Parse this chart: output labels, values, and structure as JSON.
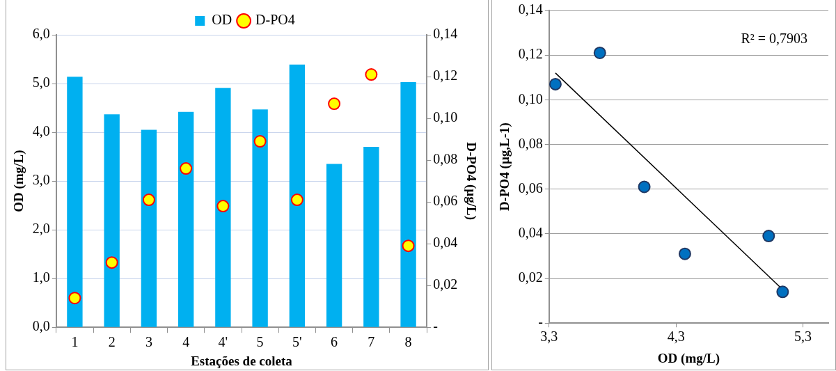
{
  "chart_data": [
    {
      "type": "bar",
      "categories": [
        "1",
        "2",
        "3",
        "4",
        "4'",
        "5",
        "5'",
        "6",
        "7",
        "8"
      ],
      "series": [
        {
          "name": "OD",
          "color": "#00b0f0",
          "values": [
            5.14,
            4.37,
            4.05,
            4.42,
            4.91,
            4.47,
            5.39,
            3.35,
            3.7,
            5.03
          ]
        },
        {
          "name": "D-PO4",
          "type": "scatter",
          "axis": "y2",
          "color": "#ffff00",
          "values": [
            0.014,
            0.031,
            0.061,
            0.076,
            0.058,
            0.089,
            0.061,
            0.107,
            0.121,
            0.039
          ]
        }
      ],
      "xlabel": "Estações de coleta",
      "ylabel": "OD (mg/L)",
      "y2label": "D-PO4 (µg/L)",
      "ylim": [
        0,
        6
      ],
      "yticks": [
        {
          "value": 0,
          "label": "0,0"
        },
        {
          "value": 1,
          "label": "1,0"
        },
        {
          "value": 2,
          "label": "2,0"
        },
        {
          "value": 3,
          "label": "3,0"
        },
        {
          "value": 4,
          "label": "4,0"
        },
        {
          "value": 5,
          "label": "5,0"
        },
        {
          "value": 6,
          "label": "6,0"
        }
      ],
      "y2lim": [
        0,
        0.14
      ],
      "y2ticks": [
        {
          "value": 0,
          "label": "-"
        },
        {
          "value": 0.02,
          "label": "0,02"
        },
        {
          "value": 0.04,
          "label": "0,04"
        },
        {
          "value": 0.06,
          "label": "0,06"
        },
        {
          "value": 0.08,
          "label": "0,08"
        },
        {
          "value": 0.1,
          "label": "0,10"
        },
        {
          "value": 0.12,
          "label": "0,12"
        },
        {
          "value": 0.14,
          "label": "0,14"
        }
      ],
      "grid": "y",
      "legend": "top",
      "marker": "circle"
    },
    {
      "type": "scatter",
      "series": [
        {
          "color": "#0070c0",
          "x": [
            3.35,
            3.7,
            4.05,
            4.37,
            5.03,
            5.14
          ],
          "values": [
            0.107,
            0.121,
            0.061,
            0.031,
            0.039,
            0.014
          ]
        },
        {
          "type": "line",
          "marker": "none",
          "color": "#000000",
          "x": [
            3.35,
            5.14
          ],
          "values": [
            0.112,
            0.015
          ]
        }
      ],
      "xlabel": "OD (mg/L)",
      "ylabel": "D-PO4 (µg,L-1)",
      "annotations": [
        "R² = 0,7903"
      ],
      "xlim": [
        3.3,
        5.5
      ],
      "xticks": [
        {
          "value": 3.3,
          "label": "3,3"
        },
        {
          "value": 4.3,
          "label": "4,3"
        },
        {
          "value": 5.3,
          "label": "5,3"
        }
      ],
      "ylim": [
        0,
        0.14
      ],
      "yticks": [
        {
          "value": 0,
          "label": "-"
        },
        {
          "value": 0.02,
          "label": "0,02"
        },
        {
          "value": 0.04,
          "label": "0,04"
        },
        {
          "value": 0.06,
          "label": "0,06"
        },
        {
          "value": 0.08,
          "label": "0,08"
        },
        {
          "value": 0.1,
          "label": "0,10"
        },
        {
          "value": 0.12,
          "label": "0,12"
        },
        {
          "value": 0.14,
          "label": "0,14"
        }
      ],
      "grid": "y",
      "legend": false,
      "marker": "circle"
    }
  ]
}
